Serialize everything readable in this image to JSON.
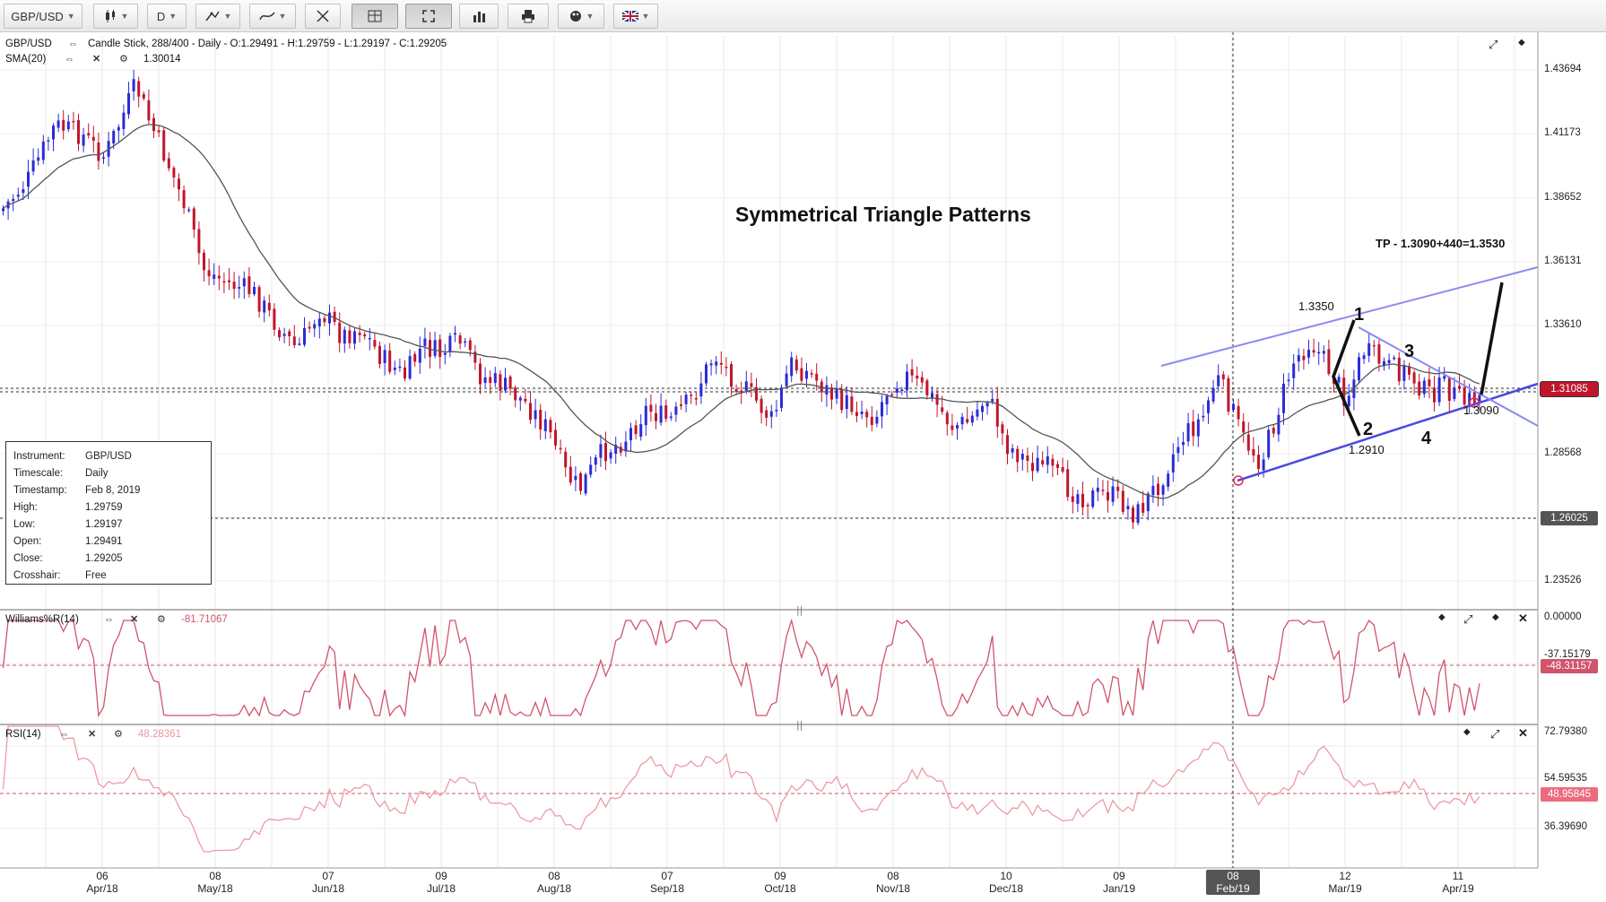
{
  "toolbar": {
    "symbol": "GBP/USD",
    "timeframe": "D"
  },
  "colors": {
    "bull_candle": "#2b2bd6",
    "bear_candle": "#c0162c",
    "sma_line": "#555555",
    "trendline": "#6f6ff0",
    "williams_line": "#d0546c",
    "rsi_line": "#ec9ba4",
    "last_price_tag": "#c0162c"
  },
  "main_pane": {
    "header": "GBP/USD",
    "description": "Candle Stick, 288/400 - Daily - O:1.29491 - H:1.29759 - L:1.29197 - C:1.29205",
    "sma_label": "SMA(20)",
    "sma_value": "1.30014",
    "price_axis": [
      "1.43694",
      "1.41173",
      "1.38652",
      "1.36131",
      "1.33610",
      "1.28568",
      "1.23526"
    ],
    "last_price": "1.31085",
    "crosshair_price": "1.26025",
    "title": "Symmetrical Triangle Patterns",
    "tp_note": "TP - 1.3090+440=1.3530",
    "annotations": {
      "high": "1.3350",
      "low": "1.2910",
      "apex": "1.3090",
      "wave1": "1",
      "wave2": "2",
      "wave3": "3",
      "wave4": "4"
    }
  },
  "info_box": [
    {
      "k": "Instrument:",
      "v": "GBP/USD"
    },
    {
      "k": "Timescale:",
      "v": "Daily"
    },
    {
      "k": "Timestamp:",
      "v": "Feb 8, 2019"
    },
    {
      "k": "High:",
      "v": "1.29759"
    },
    {
      "k": "Low:",
      "v": "1.29197"
    },
    {
      "k": "Open:",
      "v": "1.29491"
    },
    {
      "k": "Close:",
      "v": "1.29205"
    },
    {
      "k": "Crosshair:",
      "v": "Free"
    }
  ],
  "williams_pane": {
    "label": "Williams%R(14)",
    "value": "-81.71067",
    "axis_top": "0.00000",
    "axis_mid": "-37.15179",
    "current": "-48.31157"
  },
  "rsi_pane": {
    "label": "RSI(14)",
    "value": "48.28361",
    "axis": [
      "72.79380",
      "54.59535",
      "36.39690"
    ],
    "current": "48.95845"
  },
  "date_axis": [
    {
      "d": "06",
      "m": "Apr/18"
    },
    {
      "d": "08",
      "m": "May/18"
    },
    {
      "d": "07",
      "m": "Jun/18"
    },
    {
      "d": "09",
      "m": "Jul/18"
    },
    {
      "d": "08",
      "m": "Aug/18"
    },
    {
      "d": "07",
      "m": "Sep/18"
    },
    {
      "d": "09",
      "m": "Oct/18"
    },
    {
      "d": "08",
      "m": "Nov/18"
    },
    {
      "d": "10",
      "m": "Dec/18"
    },
    {
      "d": "09",
      "m": "Jan/19"
    },
    {
      "d": "08",
      "m": "Feb/19"
    },
    {
      "d": "12",
      "m": "Mar/19"
    },
    {
      "d": "11",
      "m": "Apr/19"
    }
  ]
}
